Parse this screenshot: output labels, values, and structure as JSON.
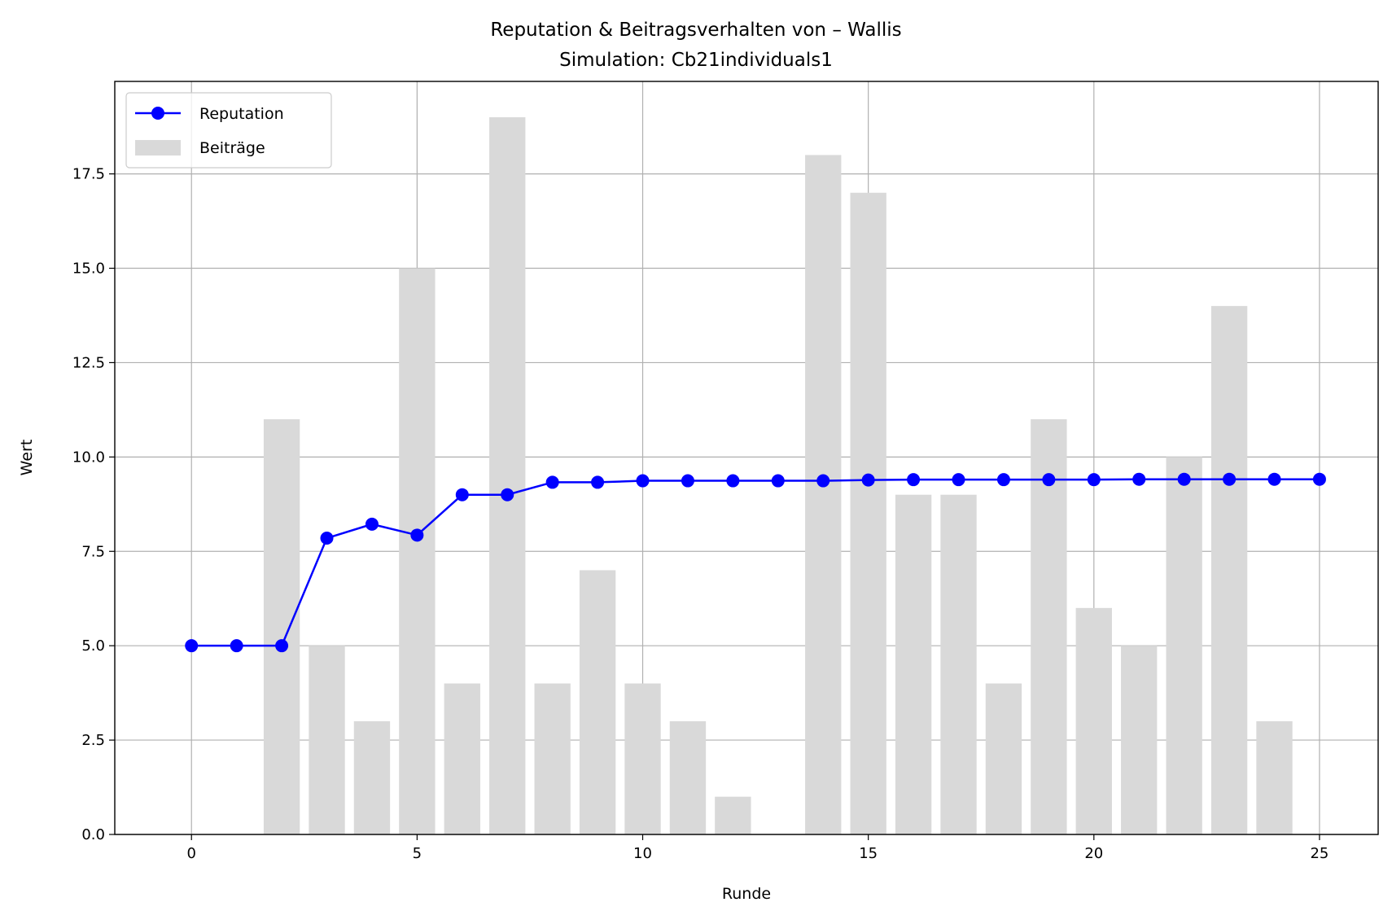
{
  "chart_data": {
    "type": "bar+line",
    "title": "Reputation & Beitragsverhalten von – Wallis",
    "subtitle": "Simulation: Cb21individuals1",
    "xlabel": "Runde",
    "ylabel": "Wert",
    "xlim": [
      -1.7,
      26.3
    ],
    "ylim": [
      0,
      19.95
    ],
    "x_ticks": [
      0,
      5,
      10,
      15,
      20,
      25
    ],
    "x_tick_labels": [
      "0",
      "5",
      "10",
      "15",
      "20",
      "25"
    ],
    "y_ticks": [
      0,
      2.5,
      5,
      7.5,
      10,
      12.5,
      15,
      17.5
    ],
    "y_tick_labels": [
      "0.0",
      "2.5",
      "5.0",
      "7.5",
      "10.0",
      "12.5",
      "15.0",
      "17.5"
    ],
    "grid": true,
    "legend_position": "upper-left",
    "series": [
      {
        "name": "Reputation",
        "kind": "line",
        "marker": "circle",
        "color": "#0000ff",
        "x": [
          0,
          1,
          2,
          3,
          4,
          5,
          6,
          7,
          8,
          9,
          10,
          11,
          12,
          13,
          14,
          15,
          16,
          17,
          18,
          19,
          20,
          21,
          22,
          23,
          24,
          25
        ],
        "values": [
          5.0,
          5.0,
          5.0,
          7.85,
          8.22,
          7.93,
          9.0,
          9.0,
          9.33,
          9.33,
          9.37,
          9.37,
          9.37,
          9.37,
          9.37,
          9.39,
          9.4,
          9.4,
          9.4,
          9.4,
          9.4,
          9.41,
          9.41,
          9.41,
          9.41,
          9.41
        ]
      },
      {
        "name": "Beiträge",
        "kind": "bar",
        "color": "#d9d9d9",
        "x": [
          0,
          1,
          2,
          3,
          4,
          5,
          6,
          7,
          8,
          9,
          10,
          11,
          12,
          13,
          14,
          15,
          16,
          17,
          18,
          19,
          20,
          21,
          22,
          23,
          24
        ],
        "values": [
          0,
          0,
          11,
          5,
          3,
          15,
          4,
          19,
          4,
          7,
          4,
          3,
          1,
          0,
          18,
          17,
          9,
          9,
          4,
          11,
          6,
          5,
          10,
          14,
          3
        ]
      }
    ]
  }
}
